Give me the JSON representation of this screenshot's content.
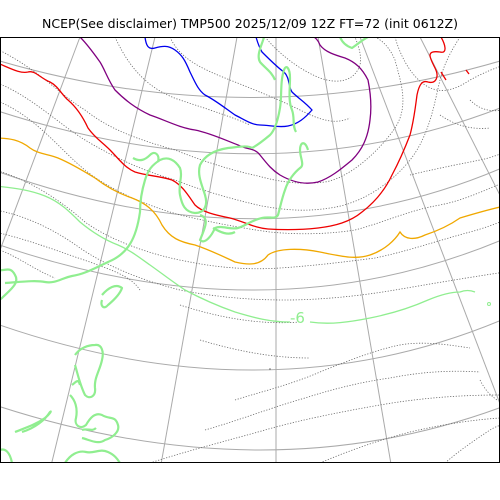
{
  "title": "NCEP(See disclaimer) TMP500 2025/12/09 12Z FT=72 (init 0612Z)",
  "contour_labels": [
    {
      "text": "-6"
    }
  ],
  "colors": {
    "coastline": "#90ee90",
    "grid": "#aaaaaa",
    "isotherm_minor": "#666666",
    "isotherm_red": "#ee0000",
    "isotherm_orange": "#f0a800",
    "isotherm_purple": "#800080",
    "isotherm_blue": "#0000ee",
    "isotherm_green": "#90ee90",
    "frame": "#000000"
  }
}
